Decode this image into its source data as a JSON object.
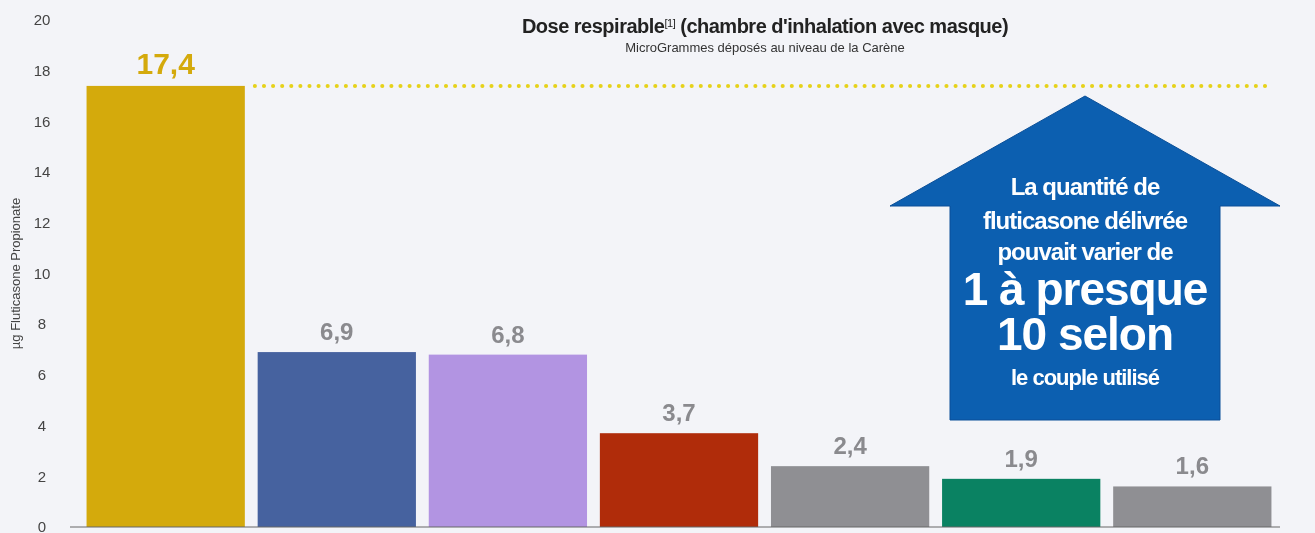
{
  "chart_data": {
    "type": "bar",
    "title": "Dose respirable$^{[1]}$ (chambre d'inhalation avec masque)",
    "subtitle": "MicroGrammes déposés au niveau de la Carène",
    "ylabel": "µg Fluticasone Propionate",
    "categories": [
      null,
      null,
      null,
      null,
      null,
      null,
      null
    ],
    "values": [
      17.4,
      6.9,
      6.8,
      3.7,
      2.4,
      1.9,
      1.6
    ],
    "value_labels": [
      "17,4",
      "6,9",
      "6,8",
      "3,7",
      "2,4",
      "1,9",
      "1,6"
    ],
    "colors": [
      "#d4aa0c",
      "#46629f",
      "#b294e2",
      "#b02c0a",
      "#8f8f93",
      "#0a8262",
      "#8f8f93"
    ],
    "ylim": [
      0,
      20
    ],
    "yticks": [
      0,
      2,
      4,
      6,
      8,
      10,
      12,
      14,
      16,
      18,
      20
    ],
    "grid": false,
    "ref_lines": [
      {
        "axis": "y",
        "value": 17.4,
        "color": "#e6d21a",
        "line_style": "dotted"
      }
    ],
    "annotations": [
      "La quantité de",
      "fluticasone délivrée",
      "pouvait varier de",
      "1 à presque",
      "10 selon",
      "le couple utilisé"
    ]
  }
}
